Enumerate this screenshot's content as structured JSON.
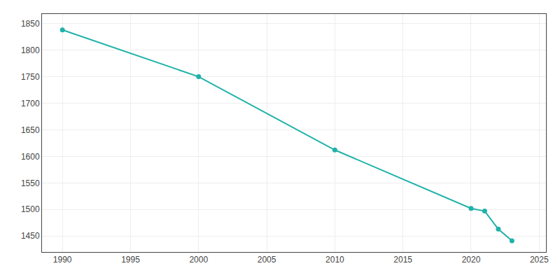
{
  "chart_data": {
    "type": "line",
    "x": [
      1990,
      2000,
      2010,
      2020,
      2021,
      2022,
      2023
    ],
    "values": [
      1838,
      1750,
      1612,
      1502,
      1497,
      1463,
      1441
    ],
    "color": "#20b2aa",
    "marker": "circle",
    "xlim": [
      1988.5,
      2025.5
    ],
    "ylim": [
      1420,
      1868
    ],
    "xticks": [
      1990,
      1995,
      2000,
      2005,
      2010,
      2015,
      2020,
      2025
    ],
    "yticks": [
      1450,
      1500,
      1550,
      1600,
      1650,
      1700,
      1750,
      1800,
      1850
    ],
    "grid": true
  }
}
